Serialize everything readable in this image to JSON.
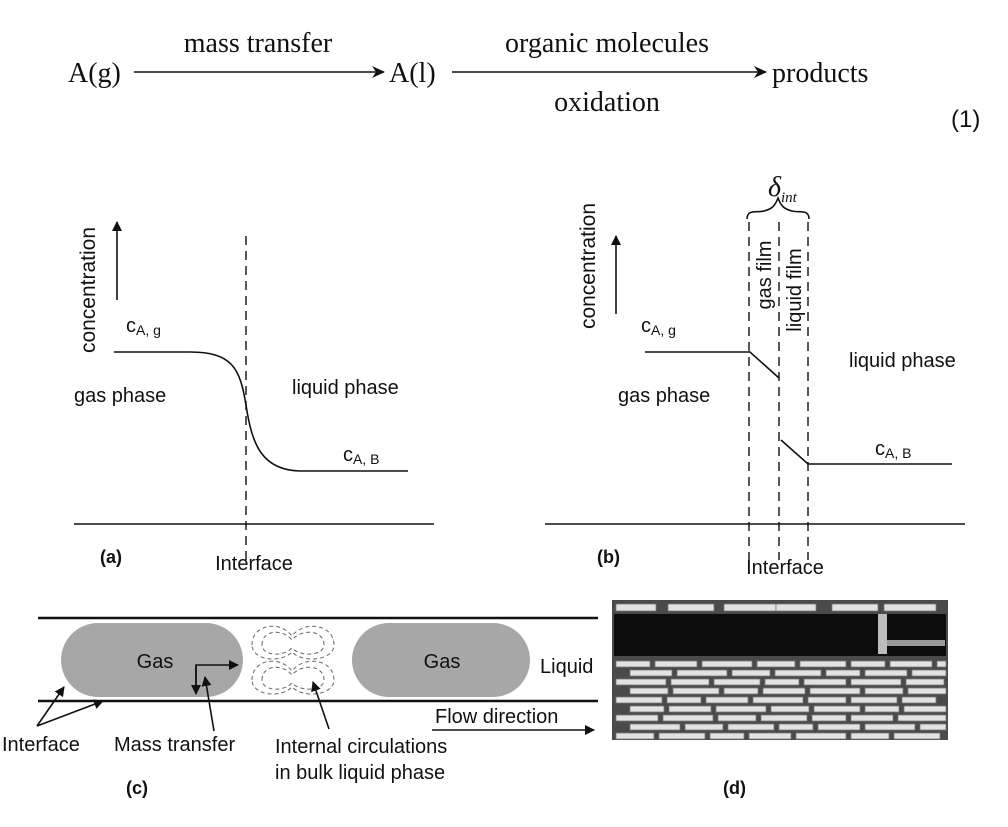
{
  "equation": {
    "reactant": "A(g)",
    "arrow1_label": "mass transfer",
    "intermediate": "A(l)",
    "arrow2_label_top": "organic molecules",
    "arrow2_label_bottom": "oxidation",
    "product": "products",
    "number": "(1)"
  },
  "panel_a": {
    "y_axis_label": "concentration",
    "c_gas_main": "c",
    "c_gas_sub": "A, g",
    "gas_label": "gas phase",
    "liquid_label": "liquid phase",
    "c_liq_main": "c",
    "c_liq_sub": "A, B",
    "interface_label": "Interface",
    "panel_label": "(a)"
  },
  "panel_b": {
    "y_axis_label": "concentration",
    "delta_symbol": "δ",
    "delta_sub": "int",
    "gas_film_label": "gas film",
    "liquid_film_label": "liquid film",
    "c_gas_main": "c",
    "c_gas_sub": "A, g",
    "gas_label": "gas phase",
    "liquid_label": "liquid phase",
    "c_liq_main": "c",
    "c_liq_sub": "A, B",
    "interface_label": "Interface",
    "panel_label": "(b)"
  },
  "panel_c": {
    "gas1_label": "Gas",
    "gas2_label": "Gas",
    "liquid_label": "Liquid",
    "flow_label": "Flow direction",
    "interface_label": "Interface",
    "mass_transfer_label": "Mass transfer",
    "circulation_line1": "Internal circulations",
    "circulation_line2": "in bulk liquid phase",
    "panel_label": "(c)"
  },
  "panel_d": {
    "panel_label": "(d)"
  }
}
